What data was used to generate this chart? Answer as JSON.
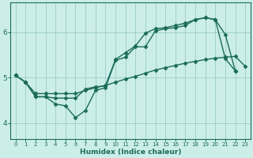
{
  "xlabel": "Humidex (Indice chaleur)",
  "xlim": [
    -0.5,
    23.5
  ],
  "ylim": [
    3.65,
    6.65
  ],
  "yticks": [
    4,
    5,
    6
  ],
  "xticks": [
    0,
    1,
    2,
    3,
    4,
    5,
    6,
    7,
    8,
    9,
    10,
    11,
    12,
    13,
    14,
    15,
    16,
    17,
    18,
    19,
    20,
    21,
    22,
    23
  ],
  "bg_color": "#cceee8",
  "grid_color": "#99cccc",
  "line_color": "#1a6b5a",
  "lines": [
    {
      "x": [
        0,
        1,
        2,
        3,
        4,
        5,
        6,
        7,
        8,
        9,
        10,
        11,
        12,
        13,
        14,
        15,
        16,
        17,
        18,
        19,
        20,
        21,
        22,
        23
      ],
      "y": [
        5.05,
        4.9,
        4.65,
        4.65,
        4.65,
        4.65,
        4.65,
        4.72,
        4.78,
        4.83,
        4.9,
        4.97,
        5.03,
        5.1,
        5.17,
        5.22,
        5.27,
        5.32,
        5.36,
        5.4,
        5.43,
        5.45,
        5.47,
        5.25
      ]
    },
    {
      "x": [
        0,
        1,
        2,
        3,
        4,
        5,
        6,
        7,
        8,
        9,
        10,
        11,
        12,
        13,
        14,
        15,
        16,
        17,
        18,
        19,
        20,
        21,
        22,
        23
      ],
      "y": [
        5.05,
        4.9,
        4.58,
        4.58,
        4.42,
        4.38,
        4.12,
        4.28,
        4.72,
        4.78,
        5.38,
        5.45,
        5.68,
        5.68,
        6.03,
        6.08,
        6.1,
        6.15,
        6.28,
        6.32,
        6.28,
        5.42,
        5.15,
        null
      ]
    },
    {
      "x": [
        0,
        1,
        2,
        3,
        4,
        5,
        6,
        7,
        8,
        9,
        10,
        11,
        12,
        13,
        14,
        15,
        16,
        17,
        18,
        19,
        20,
        21,
        22,
        23
      ],
      "y": [
        5.05,
        4.9,
        4.58,
        4.58,
        4.55,
        4.55,
        4.55,
        4.75,
        4.8,
        4.82,
        5.4,
        5.55,
        5.7,
        5.98,
        6.08,
        6.1,
        6.15,
        6.2,
        6.28,
        6.32,
        6.28,
        5.95,
        5.15,
        null
      ]
    }
  ],
  "marker": "D",
  "markersize": 2.5,
  "linewidth": 1.0,
  "figsize": [
    3.2,
    2.0
  ],
  "dpi": 100,
  "xlabel_fontsize": 6.5,
  "tick_fontsize_x": 5.0,
  "tick_fontsize_y": 6.5
}
